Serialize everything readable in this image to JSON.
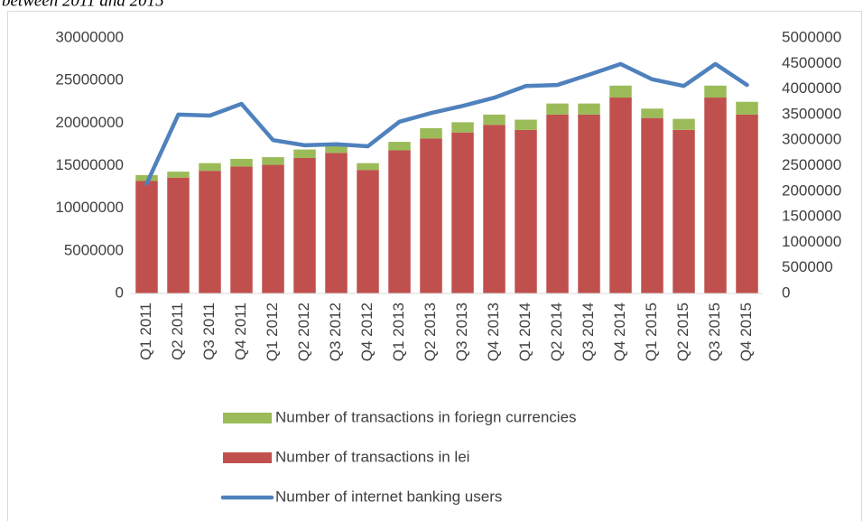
{
  "chart_data": {
    "type": "bar",
    "stacked": true,
    "caption": "between 2011 and 2015",
    "categories": [
      "Q1 2011",
      "Q2 2011",
      "Q3 2011",
      "Q4 2011",
      "Q1 2012",
      "Q2 2012",
      "Q3 2012",
      "Q4 2012",
      "Q1 2013",
      "Q2 2013",
      "Q3 2013",
      "Q4 2013",
      "Q1 2014",
      "Q2 2014",
      "Q3 2014",
      "Q4 2014",
      "Q1 2015",
      "Q2 2015",
      "Q3 2015",
      "Q4 2015"
    ],
    "series": [
      {
        "name": "Number of transactions in lei",
        "type": "bar",
        "color": "#c0504d",
        "values": [
          13200000,
          13600000,
          14400000,
          14900000,
          15100000,
          15900000,
          16500000,
          14500000,
          16800000,
          18200000,
          18900000,
          19800000,
          19200000,
          21000000,
          21000000,
          23000000,
          20600000,
          19200000,
          23000000,
          21000000
        ]
      },
      {
        "name": "Number of transactions in foriegn currencies",
        "type": "bar",
        "color": "#9bbb59",
        "values": [
          700000,
          700000,
          900000,
          900000,
          900000,
          1000000,
          800000,
          800000,
          1000000,
          1200000,
          1200000,
          1200000,
          1200000,
          1300000,
          1300000,
          1400000,
          1100000,
          1300000,
          1400000,
          1500000
        ]
      },
      {
        "name": "Number of internet banking users",
        "type": "line",
        "axis": "y2",
        "color": "#4f81bd",
        "values": [
          2150000,
          3500000,
          3480000,
          3710000,
          3000000,
          2900000,
          2920000,
          2880000,
          3360000,
          3530000,
          3670000,
          3830000,
          4060000,
          4080000,
          4280000,
          4490000,
          4190000,
          4060000,
          4490000,
          4080000
        ]
      }
    ],
    "legend": "bottom",
    "ylim": [
      0,
      30000000
    ],
    "yticks": [
      0,
      5000000,
      10000000,
      15000000,
      20000000,
      25000000,
      30000000
    ],
    "y2lim": [
      0,
      5000000
    ],
    "y2ticks": [
      0,
      500000,
      1000000,
      1500000,
      2000000,
      2500000,
      3000000,
      3500000,
      4000000,
      4500000,
      5000000
    ]
  }
}
